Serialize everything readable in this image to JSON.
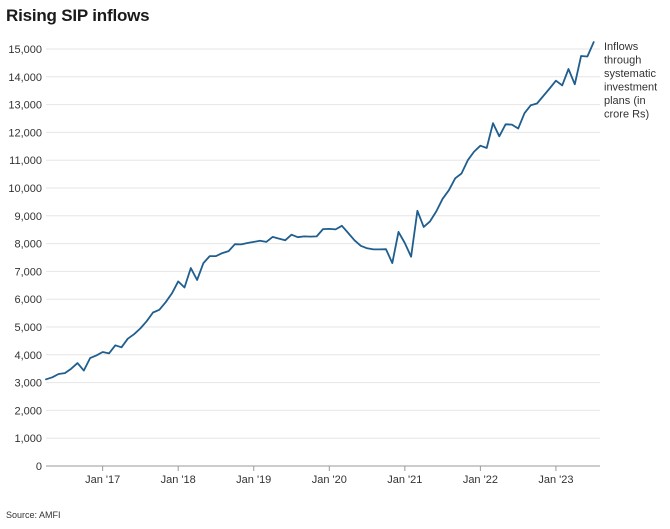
{
  "header": {
    "title": "Rising SIP inflows"
  },
  "footer": {
    "source": "Source: AMFI"
  },
  "colors": {
    "line": "#1f5e8e",
    "grid": "#e6e6e6",
    "axis": "#999999"
  },
  "chart_data": {
    "type": "line",
    "title": "Rising SIP inflows",
    "xlabel": "",
    "ylabel": "",
    "ylim": [
      0,
      15000
    ],
    "y_ticks": [
      0,
      1000,
      2000,
      3000,
      4000,
      5000,
      6000,
      7000,
      8000,
      9000,
      10000,
      11000,
      12000,
      13000,
      14000,
      15000
    ],
    "y_tick_labels": [
      "0",
      "1,000",
      "2,000",
      "3,000",
      "4,000",
      "5,000",
      "6,000",
      "7,000",
      "8,000",
      "9,000",
      "10,000",
      "11,000",
      "12,000",
      "13,000",
      "14,000",
      "15,000"
    ],
    "x_ticks": [
      "2017-01",
      "2018-01",
      "2019-01",
      "2020-01",
      "2021-01",
      "2022-01",
      "2023-01"
    ],
    "x_tick_labels": [
      "Jan '17",
      "Jan '18",
      "Jan '19",
      "Jan '20",
      "Jan '21",
      "Jan '22",
      "Jan '23"
    ],
    "xlim": [
      "2016-04",
      "2023-08"
    ],
    "grid": true,
    "annotation": [
      "Inflows",
      "through",
      "systematic",
      "investment",
      "plans (in",
      "crore Rs)"
    ],
    "x": [
      "2016-04",
      "2016-05",
      "2016-06",
      "2016-07",
      "2016-08",
      "2016-09",
      "2016-10",
      "2016-11",
      "2016-12",
      "2017-01",
      "2017-02",
      "2017-03",
      "2017-04",
      "2017-05",
      "2017-06",
      "2017-07",
      "2017-08",
      "2017-09",
      "2017-10",
      "2017-11",
      "2017-12",
      "2018-01",
      "2018-02",
      "2018-03",
      "2018-04",
      "2018-05",
      "2018-06",
      "2018-07",
      "2018-08",
      "2018-09",
      "2018-10",
      "2018-11",
      "2018-12",
      "2019-01",
      "2019-02",
      "2019-03",
      "2019-04",
      "2019-05",
      "2019-06",
      "2019-07",
      "2019-08",
      "2019-09",
      "2019-10",
      "2019-11",
      "2019-12",
      "2020-01",
      "2020-02",
      "2020-03",
      "2020-04",
      "2020-05",
      "2020-06",
      "2020-07",
      "2020-08",
      "2020-09",
      "2020-10",
      "2020-11",
      "2020-12",
      "2021-01",
      "2021-02",
      "2021-03",
      "2021-04",
      "2021-05",
      "2021-06",
      "2021-07",
      "2021-08",
      "2021-09",
      "2021-10",
      "2021-11",
      "2021-12",
      "2022-01",
      "2022-02",
      "2022-03",
      "2022-04",
      "2022-05",
      "2022-06",
      "2022-07",
      "2022-08",
      "2022-09",
      "2022-10",
      "2022-11",
      "2022-12",
      "2023-01",
      "2023-02",
      "2023-03",
      "2023-04",
      "2023-05",
      "2023-06",
      "2023-07"
    ],
    "series": [
      {
        "values": [
          3120,
          3190,
          3310,
          3340,
          3500,
          3700,
          3430,
          3880,
          3980,
          4100,
          4050,
          4340,
          4270,
          4580,
          4740,
          4950,
          5210,
          5520,
          5620,
          5890,
          6210,
          6640,
          6420,
          7120,
          6690,
          7300,
          7550,
          7550,
          7660,
          7730,
          7980,
          7970,
          8020,
          8060,
          8100,
          8060,
          8240,
          8180,
          8120,
          8320,
          8230,
          8260,
          8250,
          8260,
          8520,
          8530,
          8510,
          8640,
          8380,
          8120,
          7920,
          7830,
          7790,
          7790,
          7800,
          7300,
          8420,
          8020,
          7530,
          9180,
          8600,
          8800,
          9160,
          9610,
          9920,
          10350,
          10520,
          11000,
          11310,
          11520,
          11440,
          12330,
          11860,
          12290,
          12280,
          12140,
          12690,
          12980,
          13040,
          13310,
          13580,
          13860,
          13690,
          14280,
          13730,
          14750,
          14730,
          15250
        ]
      }
    ]
  }
}
